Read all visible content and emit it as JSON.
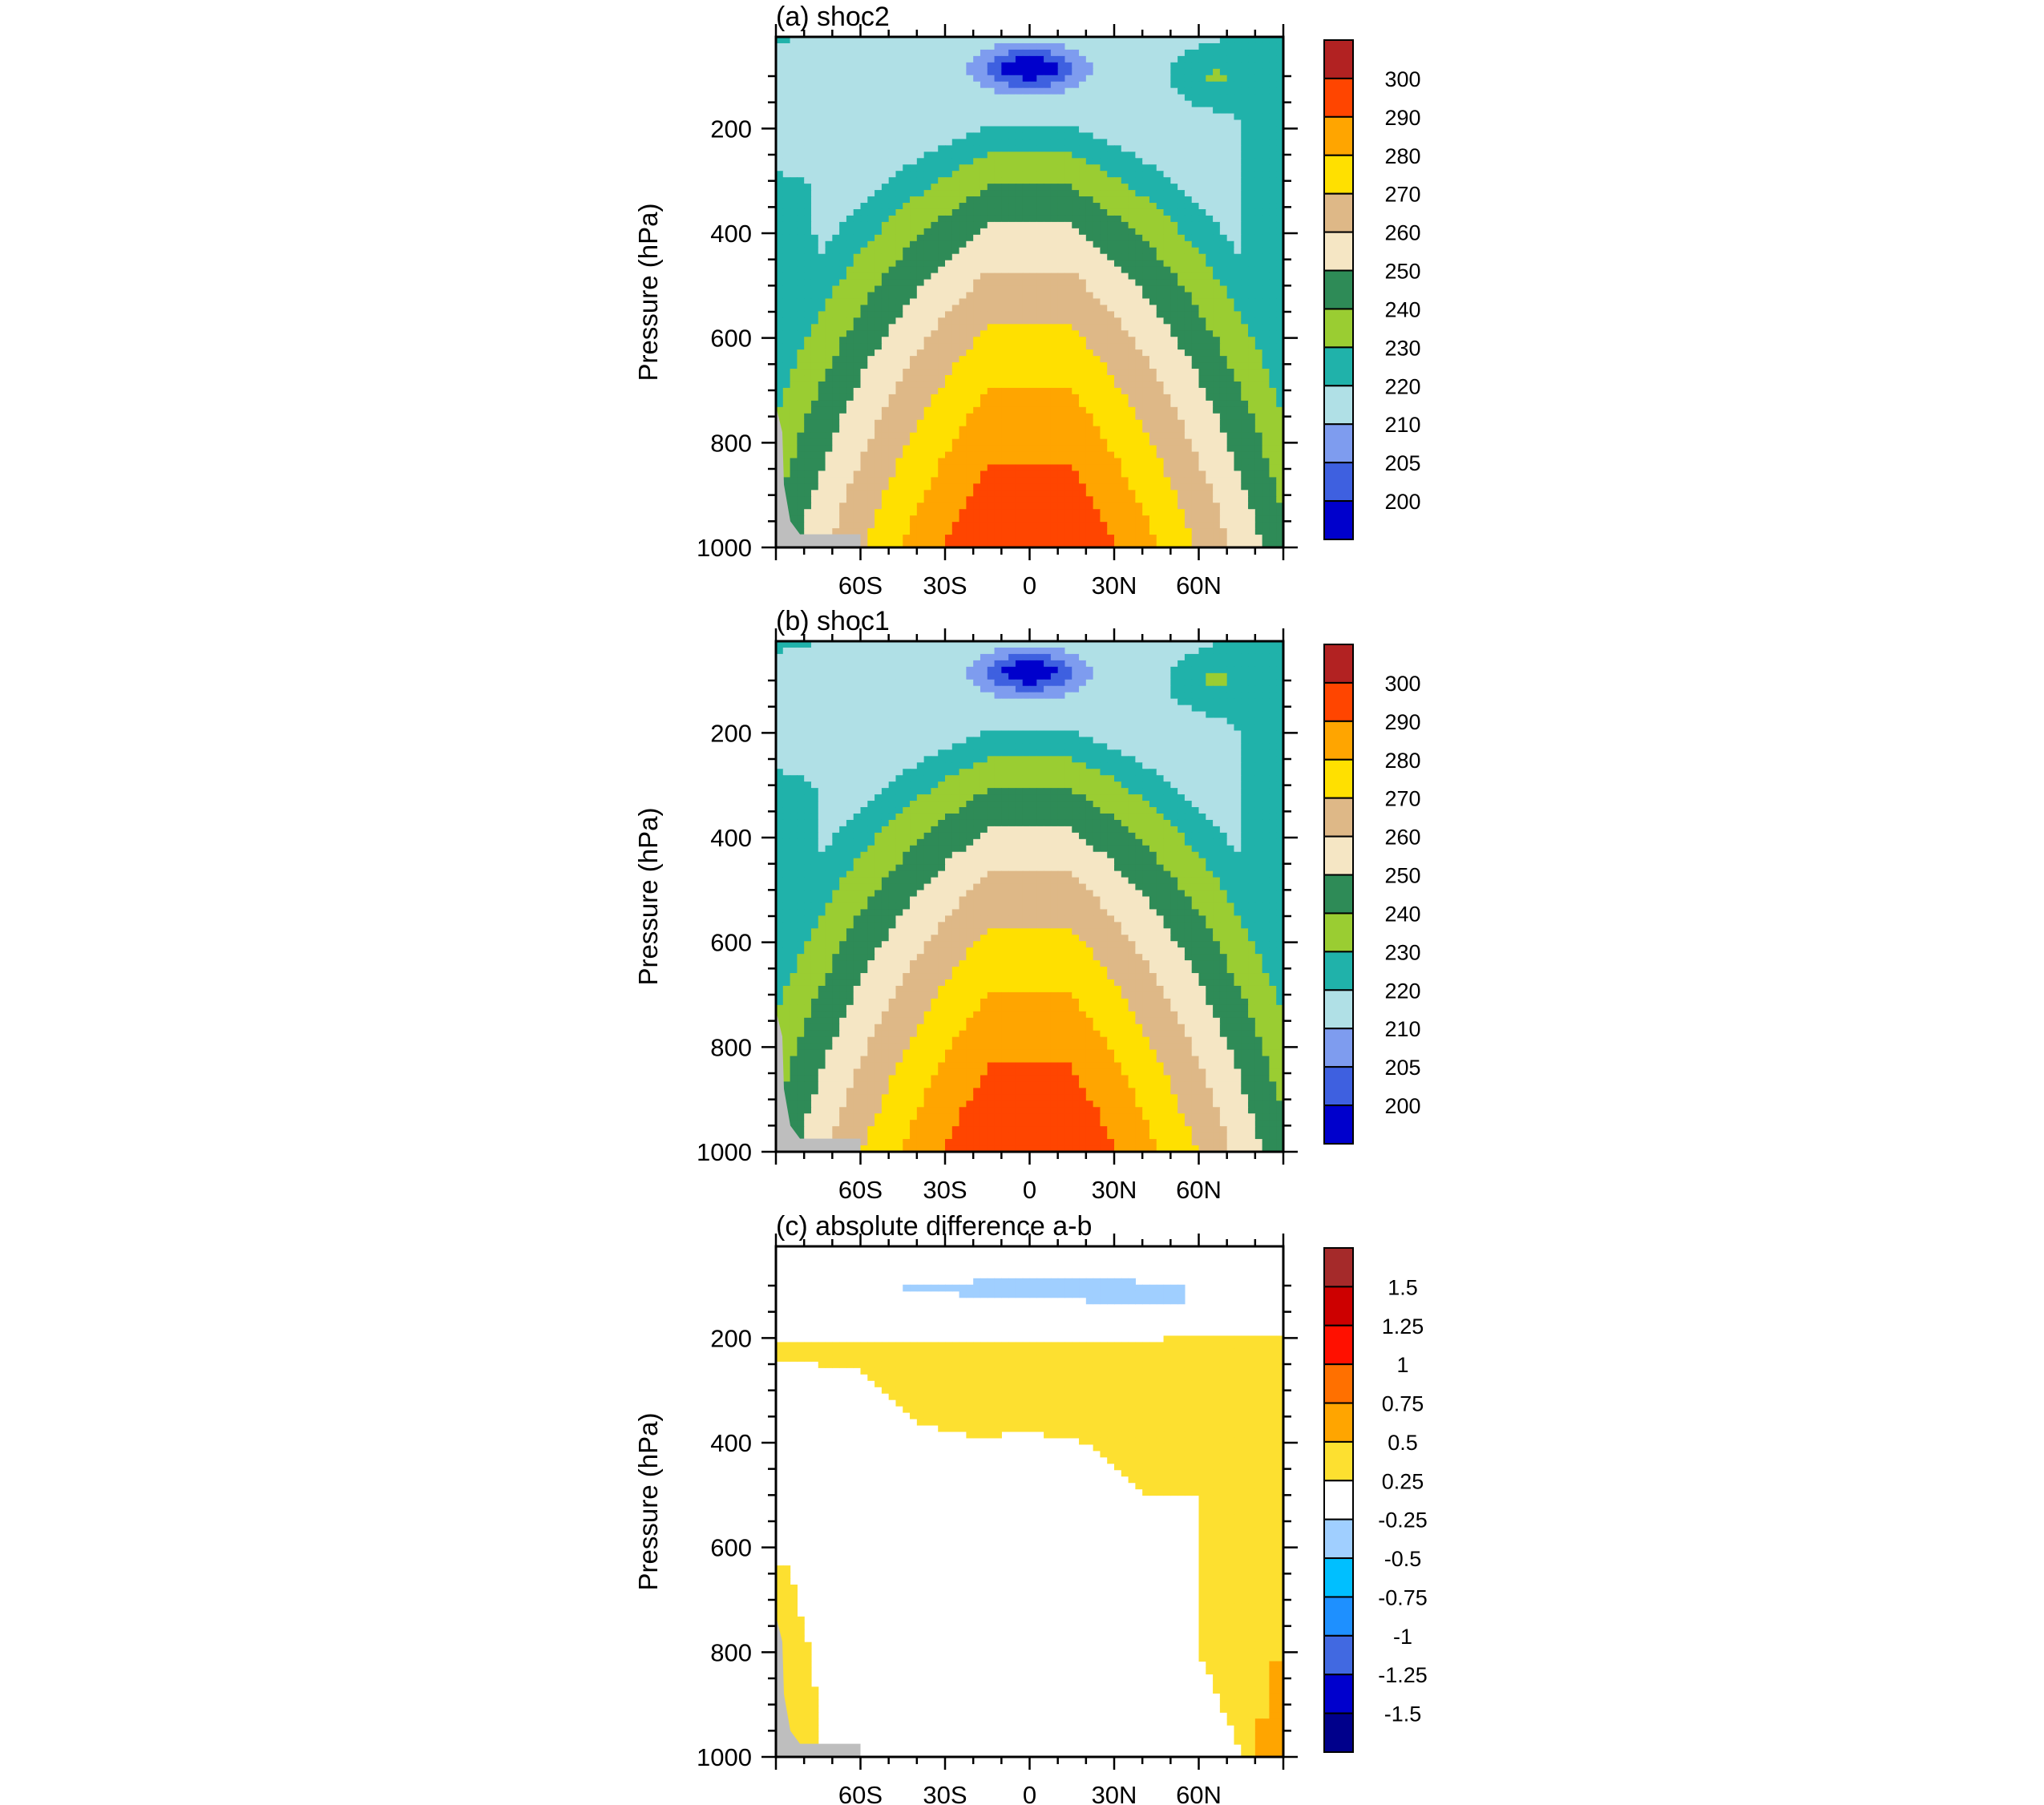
{
  "figure": {
    "type": "zonal-mean pressure-latitude contour panels"
  },
  "chart_data": [
    {
      "type": "heatmap",
      "panel_id": "a",
      "title": "(a) shoc2",
      "ylabel": "Pressure (hPa)",
      "xlabel": "",
      "xlim": [
        -90,
        90
      ],
      "ylim": [
        1000,
        25
      ],
      "x_ticks": [
        -60,
        -30,
        0,
        30,
        60
      ],
      "x_tick_labels": [
        "60S",
        "30S",
        "0",
        "30N",
        "60N"
      ],
      "y_ticks": [
        200,
        400,
        600,
        800,
        1000
      ],
      "y_tick_labels": [
        "200",
        "400",
        "600",
        "800",
        "1000"
      ],
      "colorbar": {
        "levels": [
          "200",
          "205",
          "210",
          "220",
          "230",
          "240",
          "250",
          "260",
          "270",
          "280",
          "290",
          "300"
        ],
        "colors": [
          "#0000cc",
          "#3e60e0",
          "#7e9cef",
          "#b0e0e6",
          "#20b2aa",
          "#9acd32",
          "#2e8b57",
          "#f5e6c4",
          "#deb887",
          "#ffe000",
          "#ffa500",
          "#ff4500",
          "#b22222"
        ]
      },
      "missing_color": "#bebebe"
    },
    {
      "type": "heatmap",
      "panel_id": "b",
      "title": "(b) shoc1",
      "ylabel": "Pressure (hPa)",
      "xlabel": "",
      "xlim": [
        -90,
        90
      ],
      "ylim": [
        1000,
        25
      ],
      "x_ticks": [
        -60,
        -30,
        0,
        30,
        60
      ],
      "x_tick_labels": [
        "60S",
        "30S",
        "0",
        "30N",
        "60N"
      ],
      "y_ticks": [
        200,
        400,
        600,
        800,
        1000
      ],
      "y_tick_labels": [
        "200",
        "400",
        "600",
        "800",
        "1000"
      ],
      "colorbar": {
        "levels": [
          "200",
          "205",
          "210",
          "220",
          "230",
          "240",
          "250",
          "260",
          "270",
          "280",
          "290",
          "300"
        ],
        "colors": [
          "#0000cc",
          "#3e60e0",
          "#7e9cef",
          "#b0e0e6",
          "#20b2aa",
          "#9acd32",
          "#2e8b57",
          "#f5e6c4",
          "#deb887",
          "#ffe000",
          "#ffa500",
          "#ff4500",
          "#b22222"
        ]
      },
      "missing_color": "#bebebe"
    },
    {
      "type": "heatmap",
      "panel_id": "c",
      "title": "(c) absolute difference a-b",
      "ylabel": "Pressure (hPa)",
      "xlabel": "",
      "xlim": [
        -90,
        90
      ],
      "ylim": [
        1000,
        25
      ],
      "x_ticks": [
        -60,
        -30,
        0,
        30,
        60
      ],
      "x_tick_labels": [
        "60S",
        "30S",
        "0",
        "30N",
        "60N"
      ],
      "y_ticks": [
        200,
        400,
        600,
        800,
        1000
      ],
      "y_tick_labels": [
        "200",
        "400",
        "600",
        "800",
        "1000"
      ],
      "colorbar": {
        "levels": [
          "-1.5",
          "-1.25",
          "-1",
          "-0.75",
          "-0.5",
          "-0.25",
          "0.25",
          "0.5",
          "0.75",
          "1",
          "1.25",
          "1.5"
        ],
        "colors": [
          "#00008b",
          "#0000cd",
          "#4169e1",
          "#1e90ff",
          "#00bfff",
          "#a0cfff",
          "#ffffff",
          "#fde030",
          "#ffa500",
          "#ff7000",
          "#ff1000",
          "#cd0000",
          "#a52a2a"
        ]
      },
      "missing_color": "#bebebe"
    }
  ]
}
